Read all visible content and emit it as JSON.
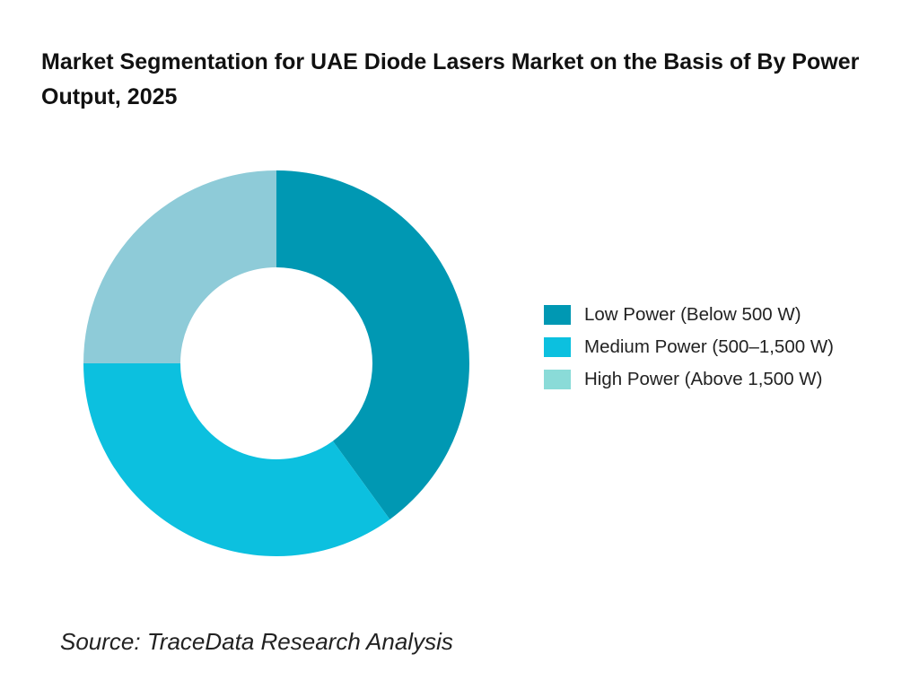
{
  "chart_data": {
    "type": "pie",
    "variant": "donut",
    "title": "Market Segmentation for UAE Diode Lasers Market on the Basis of By Power Output, 2025",
    "categories": [
      "Low Power (Below 500 W)",
      "Medium Power (500–1,500 W)",
      "High Power (Above 1,500 W)"
    ],
    "values": [
      40,
      35,
      25
    ],
    "colors": [
      "#0098b3",
      "#0cc0df",
      "#8ecbd8"
    ],
    "legend_colors": [
      "#0098b3",
      "#0cc0df",
      "#8adbd8"
    ],
    "legend_position": "right",
    "source": "Source: TraceData Research Analysis"
  }
}
